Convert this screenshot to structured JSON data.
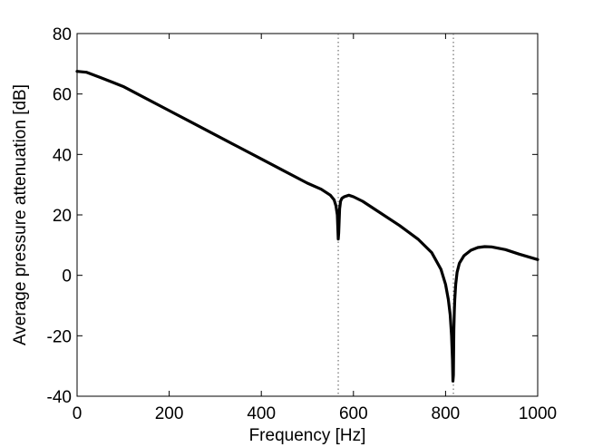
{
  "chart_data": {
    "type": "line",
    "title": "",
    "xlabel": "Frequency [Hz]",
    "ylabel": "Average pressure attenuation [dB]",
    "xlim": [
      0,
      1000
    ],
    "ylim": [
      -40,
      80
    ],
    "xticks": [
      0,
      200,
      400,
      600,
      800,
      1000
    ],
    "yticks": [
      -40,
      -20,
      0,
      20,
      40,
      60,
      80
    ],
    "grid": false,
    "legend": "none",
    "line_color": "#000000",
    "reference_line_color": "#555555",
    "vertical_reference_lines": [
      567,
      817
    ],
    "series": [
      {
        "x": [
          0,
          20,
          50,
          100,
          150,
          200,
          250,
          300,
          350,
          400,
          450,
          500,
          530,
          550,
          558,
          562,
          565,
          567,
          568,
          569,
          570,
          572,
          575,
          580,
          590,
          600,
          620,
          650,
          700,
          740,
          770,
          790,
          800,
          806,
          810,
          813,
          815,
          816,
          817,
          818,
          819,
          820,
          822,
          825,
          830,
          840,
          855,
          870,
          885,
          900,
          930,
          960,
          1000
        ],
        "y": [
          67.5,
          67.2,
          65.5,
          62.5,
          58.5,
          54.5,
          50.5,
          46.5,
          42.5,
          38.5,
          34.5,
          30.5,
          28.5,
          26.5,
          25,
          23,
          20,
          12,
          14,
          18,
          22,
          24.5,
          25.5,
          26,
          26.5,
          26,
          24.5,
          21.5,
          16.5,
          12,
          7.5,
          2,
          -3,
          -8,
          -13,
          -20,
          -28,
          -35,
          -33,
          -18,
          -12,
          -8,
          -3,
          1,
          4,
          6.5,
          8.3,
          9.2,
          9.5,
          9.4,
          8.5,
          7,
          5.2
        ]
      }
    ]
  }
}
